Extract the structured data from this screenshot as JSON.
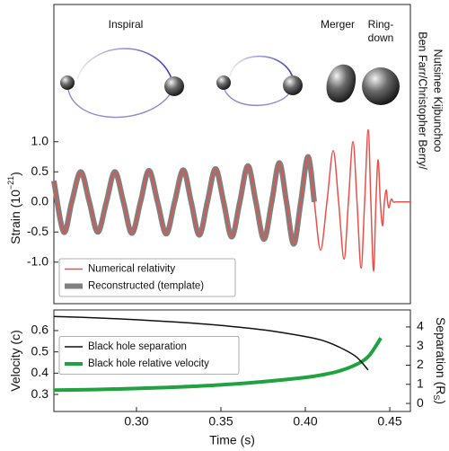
{
  "credit": [
    "Ben Farr/Christopher Berry/",
    "Nutsinee Kijbunchoo"
  ],
  "chart_data": [
    {
      "type": "line",
      "annotations": [
        "Inspiral",
        "Merger",
        "Ring-",
        "down"
      ],
      "ylabel": [
        "Strain (10",
        "−21",
        ")"
      ],
      "xlim": [
        0.2511,
        0.4622
      ],
      "ylim": [
        -1.69,
        3.28
      ],
      "yticks": [
        {
          "value": 1,
          "label": "1.0"
        },
        {
          "value": 0.5,
          "label": "0.5"
        },
        {
          "value": 0,
          "label": "0.0"
        },
        {
          "value": -0.5,
          "label": "-0.5"
        },
        {
          "value": -1,
          "label": "-1.0"
        }
      ],
      "legend": "lower left",
      "x": [
        0.2511,
        0.2569,
        0.2617,
        0.267,
        0.2721,
        0.2771,
        0.2822,
        0.2872,
        0.2923,
        0.2973,
        0.3024,
        0.3074,
        0.3125,
        0.3176,
        0.3226,
        0.3277,
        0.3324,
        0.3372,
        0.342,
        0.3468,
        0.3516,
        0.3564,
        0.3612,
        0.366,
        0.3707,
        0.3755,
        0.3801,
        0.3846,
        0.3888,
        0.3931,
        0.3973,
        0.4016,
        0.4053,
        0.409,
        0.4128,
        0.4165,
        0.4197,
        0.4229,
        0.4255,
        0.4282,
        0.4306,
        0.433,
        0.4351,
        0.4372,
        0.4388,
        0.4404,
        0.4418,
        0.4431,
        0.4444,
        0.4457,
        0.4468,
        0.4479,
        0.4487,
        0.4495,
        0.4503,
        0.4511,
        0.4521,
        0.4543,
        0.4622
      ],
      "series": [
        {
          "name": "Numerical relativity",
          "color": "#e8504a",
          "linewidth": 1.5,
          "values": [
            0.35,
            -0.5,
            0,
            0.5,
            0,
            -0.5,
            0,
            0.5,
            0,
            -0.52,
            0,
            0.52,
            0,
            -0.53,
            0,
            0.53,
            0,
            -0.55,
            0,
            0.55,
            0,
            -0.58,
            0,
            0.6,
            0,
            -0.62,
            0,
            0.65,
            0,
            -0.7,
            0,
            0.75,
            0,
            -0.8,
            0,
            0.85,
            0,
            -0.95,
            0,
            1.0,
            0,
            -1.1,
            0,
            1.2,
            0,
            -1.15,
            0,
            0.7,
            0,
            -0.4,
            0,
            0.2,
            0,
            -0.1,
            0,
            0.05,
            0,
            0,
            0
          ]
        },
        {
          "name": "Reconstructed (template)",
          "color": "#808080",
          "linewidth": 6,
          "values": [
            0.35,
            -0.5,
            0,
            0.5,
            0,
            -0.5,
            0,
            0.5,
            0,
            -0.52,
            0,
            0.52,
            0,
            -0.53,
            0,
            0.53,
            0,
            -0.55,
            0,
            0.55,
            0,
            -0.58,
            0,
            0.6,
            0,
            -0.62,
            0,
            0.65,
            0,
            -0.7,
            0,
            0.75,
            0,
            null,
            null,
            null,
            null,
            null,
            null,
            null,
            null,
            null,
            null,
            null,
            null,
            null,
            null,
            null,
            null,
            null,
            null,
            null,
            null,
            null,
            null,
            null,
            null,
            null,
            null
          ]
        }
      ]
    },
    {
      "type": "line",
      "xlabel": "Time (s)",
      "ylabel": [
        "Velocity (c)"
      ],
      "y2label": [
        "Separation (R",
        "S",
        ")"
      ],
      "xlim": [
        0.2511,
        0.4622
      ],
      "ylim": [
        0.22,
        0.697
      ],
      "y2lim": [
        -0.42,
        4.89
      ],
      "xticks": [
        {
          "value": 0.3,
          "label": "0.30"
        },
        {
          "value": 0.35,
          "label": "0.35"
        },
        {
          "value": 0.4,
          "label": "0.40"
        },
        {
          "value": 0.45,
          "label": "0.45"
        }
      ],
      "yticks": [
        0.3,
        0.4,
        0.5,
        0.6
      ],
      "y2ticks": [
        0,
        1,
        2,
        3,
        4
      ],
      "legend": "center left",
      "series": [
        {
          "name": "Black hole separation",
          "color": "#111111",
          "linewidth": 1.5,
          "axis": "y2",
          "x": [
            0.2511,
            0.275,
            0.3,
            0.325,
            0.35,
            0.375,
            0.4,
            0.41,
            0.42,
            0.43,
            0.4372
          ],
          "values": [
            4.55,
            4.48,
            4.38,
            4.25,
            4.08,
            3.85,
            3.5,
            3.3,
            2.95,
            2.45,
            1.75
          ]
        },
        {
          "name": "Black hole relative velocity",
          "color": "#1fa23f",
          "linewidth": 4,
          "axis": "y",
          "x": [
            0.2511,
            0.275,
            0.3,
            0.325,
            0.35,
            0.375,
            0.4,
            0.41,
            0.42,
            0.43,
            0.4375,
            0.4447
          ],
          "values": [
            0.32,
            0.323,
            0.328,
            0.335,
            0.345,
            0.36,
            0.38,
            0.392,
            0.41,
            0.44,
            0.48,
            0.565
          ]
        }
      ]
    }
  ]
}
